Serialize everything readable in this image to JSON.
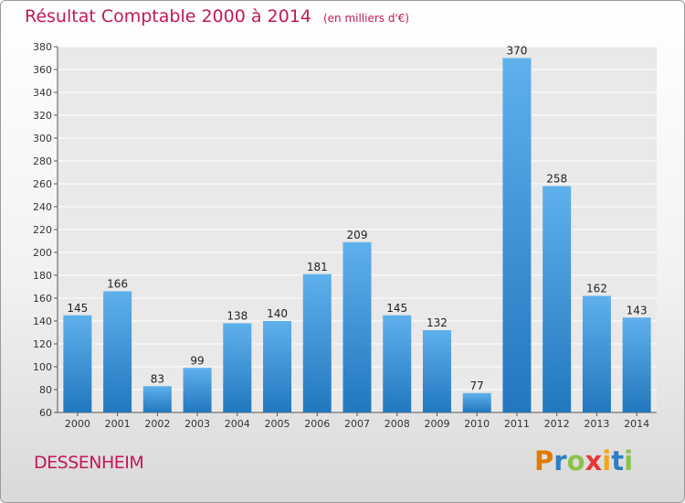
{
  "title": "Résultat Comptable 2000 à 2014",
  "subtitle": "(en milliers d'€)",
  "commune": "DESSENHEIM",
  "brand": [
    "P",
    "r",
    "o",
    "x",
    "i",
    "t",
    "i"
  ],
  "brand_colors": [
    "#e07b00",
    "#2e7fc4",
    "#8bc34a",
    "#e53935",
    "#f3a712",
    "#2e7fc4",
    "#8bc34a"
  ],
  "chart_data": {
    "type": "bar",
    "categories": [
      "2000",
      "2001",
      "2002",
      "2003",
      "2004",
      "2005",
      "2006",
      "2007",
      "2008",
      "2009",
      "2010",
      "2011",
      "2012",
      "2013",
      "2014"
    ],
    "values": [
      145,
      166,
      83,
      99,
      138,
      140,
      181,
      209,
      145,
      132,
      77,
      370,
      258,
      162,
      143
    ],
    "ylim": [
      60,
      380
    ],
    "ytick_step": 20,
    "grid": true,
    "bar_color": "#3d9be0"
  }
}
